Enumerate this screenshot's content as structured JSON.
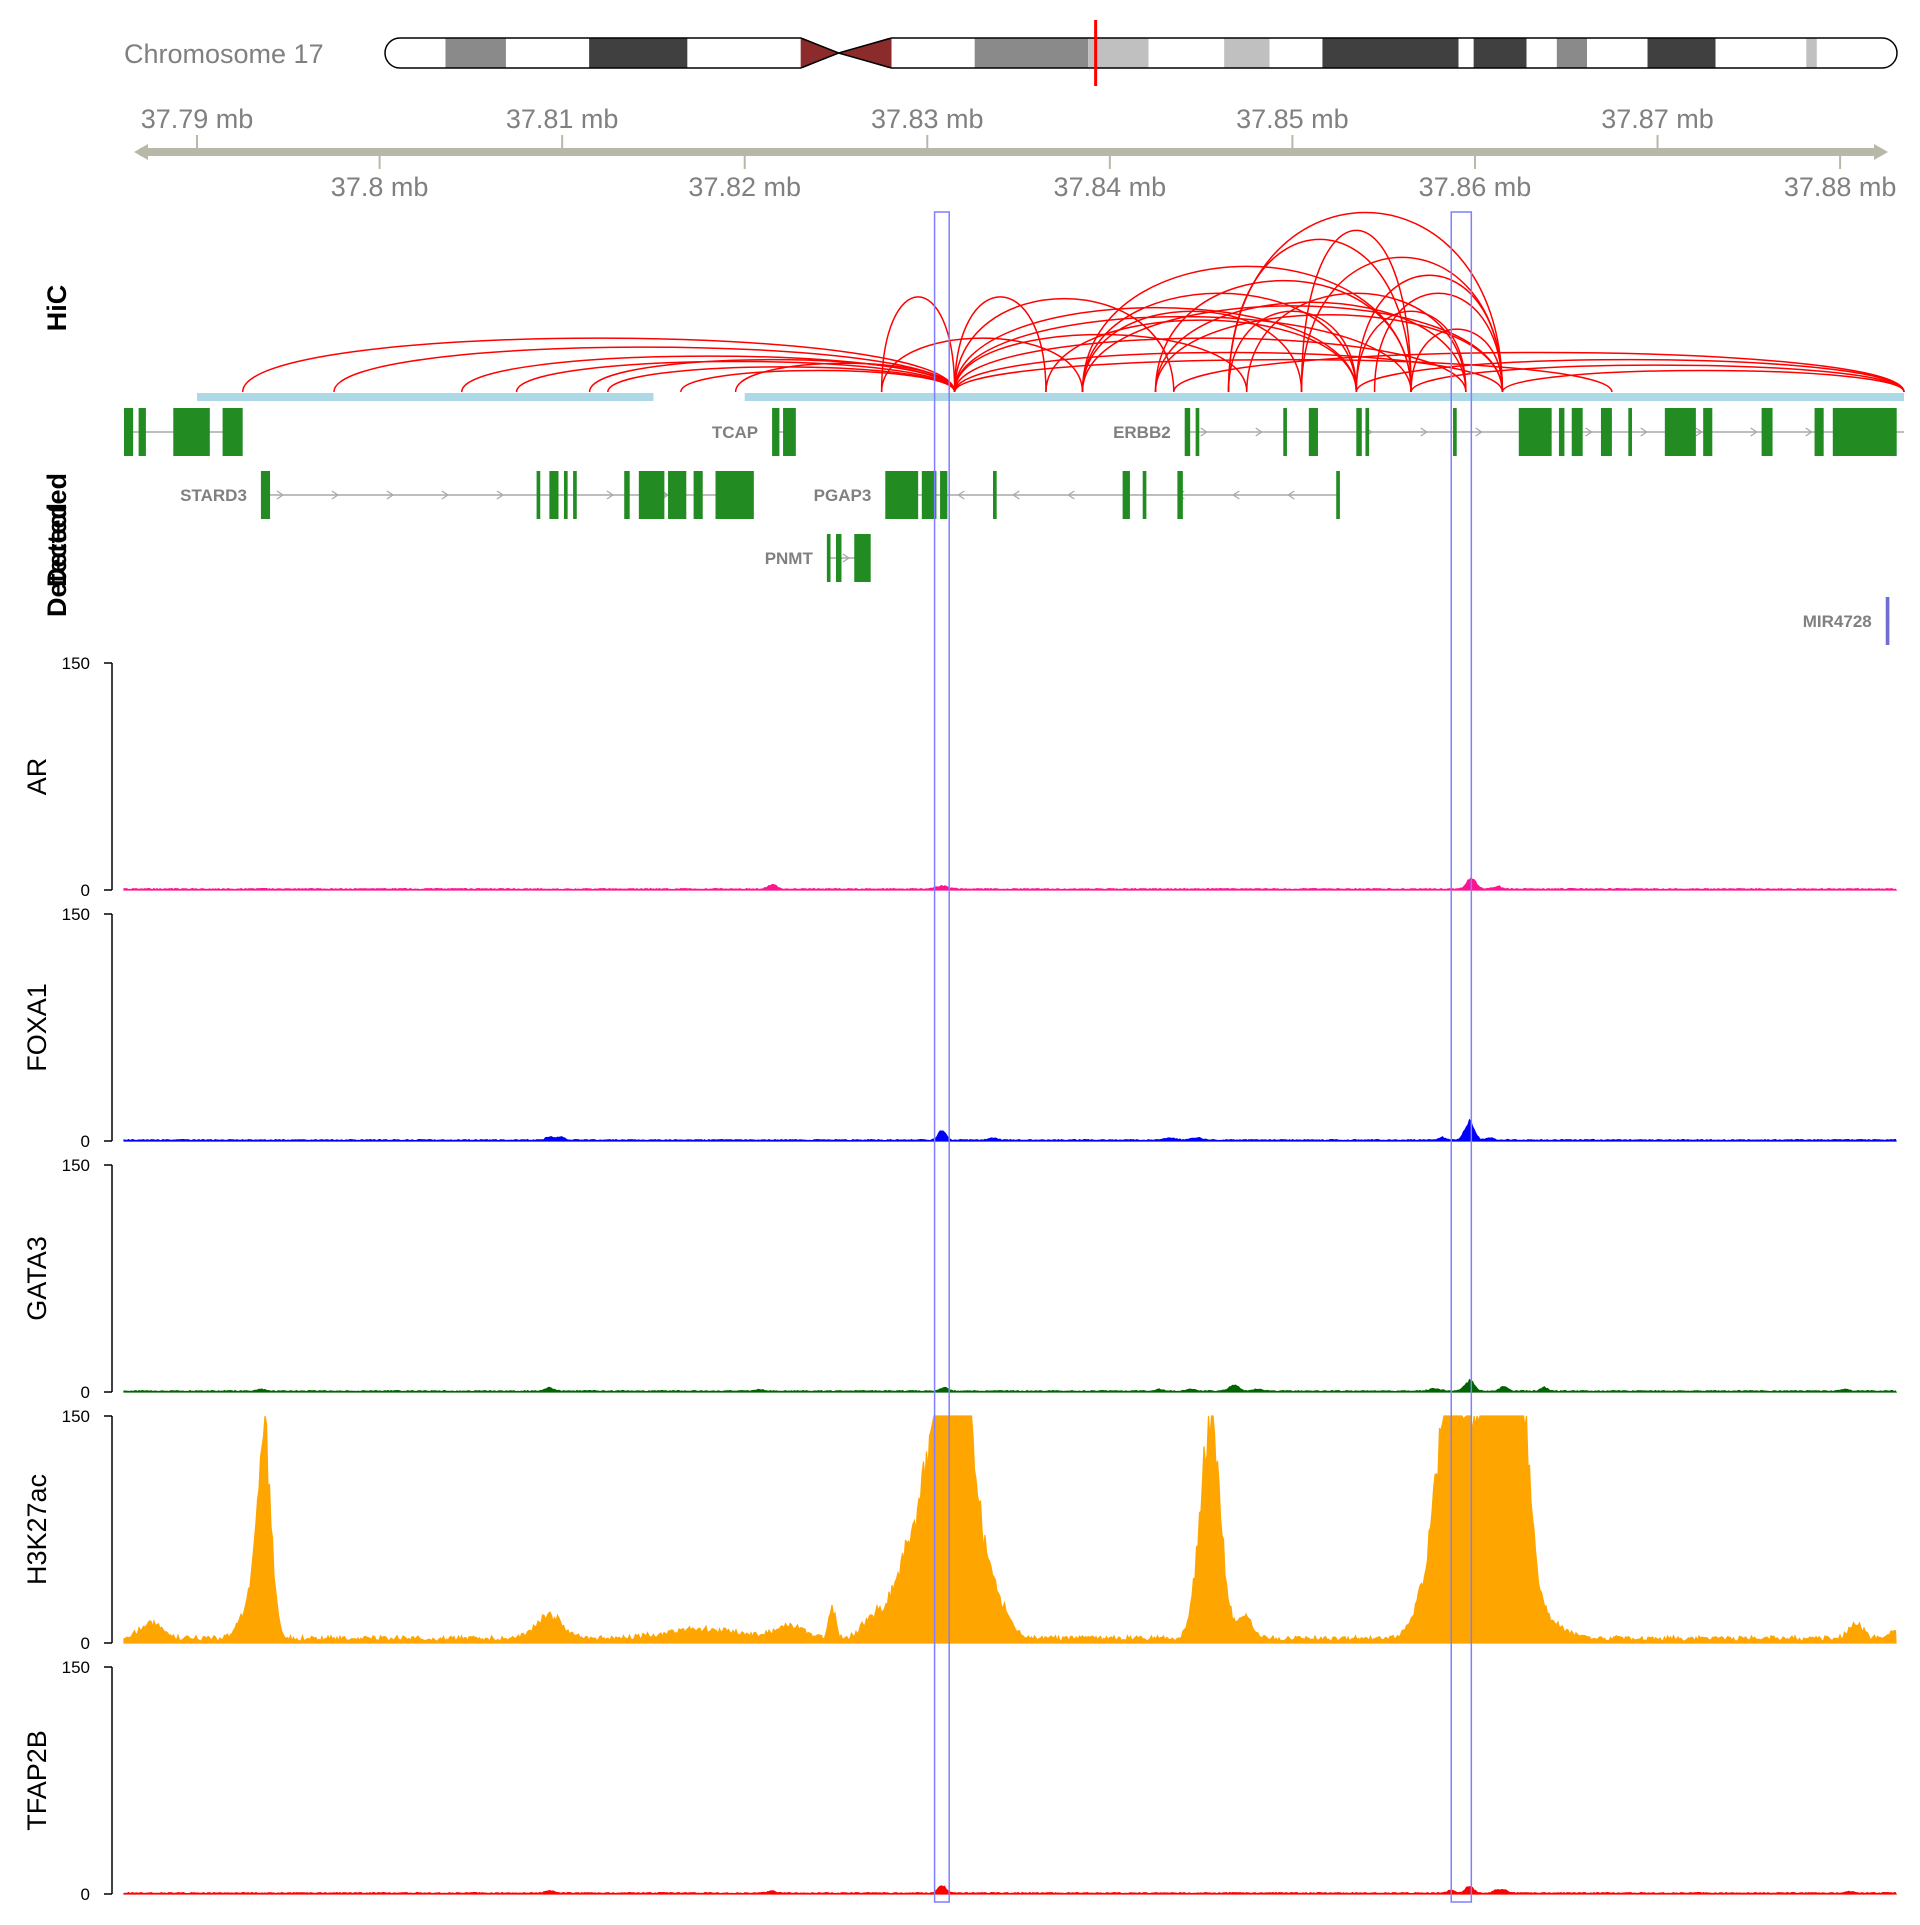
{
  "chart_data": {
    "type": "genome-browser",
    "chromosome_label": "Chromosome 17",
    "genomic_range_mb": [
      37.786,
      37.8835
    ],
    "top_axis_ticks": [
      "37.79 mb",
      "37.81 mb",
      "37.83 mb",
      "37.85 mb",
      "37.87 mb"
    ],
    "top_axis_values": [
      37.79,
      37.81,
      37.83,
      37.85,
      37.87
    ],
    "bottom_axis_ticks": [
      "37.8 mb",
      "37.82 mb",
      "37.84 mb",
      "37.86 mb",
      "37.88 mb"
    ],
    "bottom_axis_values": [
      37.8,
      37.82,
      37.84,
      37.86,
      37.88
    ],
    "ideogram": {
      "bands": [
        {
          "start": 0.0,
          "end": 0.04,
          "color": "#ffffff"
        },
        {
          "start": 0.04,
          "end": 0.08,
          "color": "#8a8a8a"
        },
        {
          "start": 0.08,
          "end": 0.135,
          "color": "#ffffff"
        },
        {
          "start": 0.135,
          "end": 0.2,
          "color": "#404040"
        },
        {
          "start": 0.2,
          "end": 0.275,
          "color": "#ffffff"
        },
        {
          "start": 0.275,
          "end": 0.32,
          "color": "#8b2b2b"
        },
        {
          "start": 0.32,
          "end": 0.335,
          "color": "#8b2b2b"
        },
        {
          "start": 0.335,
          "end": 0.39,
          "color": "#ffffff"
        },
        {
          "start": 0.39,
          "end": 0.465,
          "color": "#8a8a8a"
        },
        {
          "start": 0.465,
          "end": 0.505,
          "color": "#c0c0c0"
        },
        {
          "start": 0.505,
          "end": 0.555,
          "color": "#ffffff"
        },
        {
          "start": 0.555,
          "end": 0.585,
          "color": "#c0c0c0"
        },
        {
          "start": 0.585,
          "end": 0.62,
          "color": "#ffffff"
        },
        {
          "start": 0.62,
          "end": 0.71,
          "color": "#404040"
        },
        {
          "start": 0.71,
          "end": 0.72,
          "color": "#ffffff"
        },
        {
          "start": 0.72,
          "end": 0.755,
          "color": "#404040"
        },
        {
          "start": 0.755,
          "end": 0.775,
          "color": "#ffffff"
        },
        {
          "start": 0.775,
          "end": 0.795,
          "color": "#8a8a8a"
        },
        {
          "start": 0.795,
          "end": 0.835,
          "color": "#ffffff"
        },
        {
          "start": 0.835,
          "end": 0.88,
          "color": "#404040"
        },
        {
          "start": 0.88,
          "end": 0.94,
          "color": "#ffffff"
        },
        {
          "start": 0.94,
          "end": 0.947,
          "color": "#c0c0c0"
        },
        {
          "start": 0.947,
          "end": 1.0,
          "color": "#ffffff"
        }
      ],
      "centromere_fraction": 0.3,
      "highlight_fraction": 0.47,
      "highlight_color": "#ff0000"
    },
    "highlight_regions_mb": [
      [
        37.8304,
        37.8312
      ],
      [
        37.8587,
        37.8598
      ]
    ],
    "highlight_color": "#7f7fff",
    "hic": {
      "title": "HiC",
      "arc_color": "#ff0000",
      "anchor_color": "#add8e6",
      "anchors_mb": [
        [
          37.79,
          37.815
        ],
        [
          37.82,
          37.8835
        ]
      ],
      "arcs_mb": [
        [
          37.7925,
          37.8315,
          0.3
        ],
        [
          37.7975,
          37.8315,
          0.25
        ],
        [
          37.8045,
          37.8315,
          0.2
        ],
        [
          37.8075,
          37.8315,
          0.17
        ],
        [
          37.8115,
          37.8315,
          0.18
        ],
        [
          37.8125,
          37.8315,
          0.14
        ],
        [
          37.8165,
          37.8315,
          0.12
        ],
        [
          37.8195,
          37.8315,
          0.16
        ],
        [
          37.8275,
          37.8315,
          0.53
        ],
        [
          37.8275,
          37.8385,
          0.3
        ],
        [
          37.8315,
          37.8365,
          0.53
        ],
        [
          37.8315,
          37.8435,
          0.52
        ],
        [
          37.8315,
          37.8475,
          0.32
        ],
        [
          37.8315,
          37.8535,
          0.47
        ],
        [
          37.8315,
          37.8565,
          0.42
        ],
        [
          37.8315,
          37.8615,
          0.22
        ],
        [
          37.8315,
          37.8595,
          0.3
        ],
        [
          37.8385,
          37.8535,
          0.55
        ],
        [
          37.8385,
          37.8565,
          0.7
        ],
        [
          37.8385,
          37.8505,
          0.45
        ],
        [
          37.8425,
          37.8565,
          0.62
        ],
        [
          37.8425,
          37.8595,
          0.5
        ],
        [
          37.8425,
          37.8615,
          0.43
        ],
        [
          37.8465,
          37.8565,
          0.85
        ],
        [
          37.8465,
          37.8615,
          1.0
        ],
        [
          37.8465,
          37.8535,
          0.45
        ],
        [
          37.8505,
          37.8565,
          0.9
        ],
        [
          37.8505,
          37.8615,
          0.75
        ],
        [
          37.8535,
          37.8615,
          0.65
        ],
        [
          37.8535,
          37.8595,
          0.45
        ],
        [
          37.8565,
          37.8615,
          0.35
        ],
        [
          37.8315,
          37.8675,
          0.18
        ],
        [
          37.8435,
          37.8835,
          0.22
        ],
        [
          37.8535,
          37.8835,
          0.18
        ],
        [
          37.8565,
          37.8835,
          0.15
        ],
        [
          37.8615,
          37.8835,
          0.12
        ],
        [
          37.8475,
          37.8595,
          0.55
        ],
        [
          37.8365,
          37.8535,
          0.4
        ],
        [
          37.8385,
          37.8615,
          0.48
        ],
        [
          37.8545,
          37.8615,
          0.55
        ]
      ]
    },
    "genes": {
      "title": "Detected",
      "color": "#228b22",
      "intron_color": "#a9a9a9",
      "items": [
        {
          "name": "",
          "strand": "+",
          "row": 0,
          "start": 37.786,
          "end": 37.7925,
          "exons": [
            [
              37.786,
              37.7865
            ],
            [
              37.7868,
              37.7872
            ],
            [
              37.7887,
              37.7907
            ],
            [
              37.7914,
              37.7925
            ]
          ]
        },
        {
          "name": "TCAP",
          "strand": "+",
          "row": 0,
          "start": 37.8215,
          "end": 37.8228,
          "exons": [
            [
              37.8215,
              37.8219
            ],
            [
              37.8221,
              37.8228
            ]
          ]
        },
        {
          "name": "ERBB2",
          "strand": "+",
          "row": 0,
          "start": 37.8441,
          "end": 37.8835,
          "exons": [
            [
              37.8441,
              37.8444
            ],
            [
              37.8447,
              37.8449
            ],
            [
              37.8495,
              37.8497
            ],
            [
              37.8509,
              37.8514
            ],
            [
              37.8535,
              37.8538
            ],
            [
              37.854,
              37.8542
            ],
            [
              37.8588,
              37.859
            ],
            [
              37.8624,
              37.8642
            ],
            [
              37.8646,
              37.8649
            ],
            [
              37.8653,
              37.8659
            ],
            [
              37.8669,
              37.8675
            ],
            [
              37.8684,
              37.8686
            ],
            [
              37.8704,
              37.8721
            ],
            [
              37.8725,
              37.873
            ],
            [
              37.8757,
              37.8763
            ],
            [
              37.8786,
              37.8791
            ],
            [
              37.8796,
              37.8831
            ]
          ]
        },
        {
          "name": "STARD3",
          "strand": "+",
          "row": 1,
          "start": 37.7935,
          "end": 37.8205,
          "exons": [
            [
              37.7935,
              37.794
            ],
            [
              37.8086,
              37.8088
            ],
            [
              37.8093,
              37.8098
            ],
            [
              37.8101,
              37.8103
            ],
            [
              37.8106,
              37.8108
            ],
            [
              37.8134,
              37.8137
            ],
            [
              37.8142,
              37.8156
            ],
            [
              37.8158,
              37.8168
            ],
            [
              37.8172,
              37.8177
            ],
            [
              37.8184,
              37.8205
            ]
          ]
        },
        {
          "name": "PGAP3",
          "strand": "-",
          "row": 1,
          "start": 37.8277,
          "end": 37.8526,
          "exons": [
            [
              37.8277,
              37.8295
            ],
            [
              37.8297,
              37.8305
            ],
            [
              37.8307,
              37.8311
            ],
            [
              37.8336,
              37.8338
            ],
            [
              37.8407,
              37.8411
            ],
            [
              37.8418,
              37.842
            ],
            [
              37.8437,
              37.844
            ],
            [
              37.8524,
              37.8526
            ]
          ]
        },
        {
          "name": "PNMT",
          "strand": "+",
          "row": 2,
          "start": 37.8245,
          "end": 37.8269,
          "exons": [
            [
              37.8245,
              37.8247
            ],
            [
              37.825,
              37.8253
            ],
            [
              37.826,
              37.8269
            ]
          ]
        },
        {
          "name": "MIR4728",
          "strand": "+",
          "row": 3,
          "start": 37.8825,
          "end": 37.8827,
          "exons": [
            [
              37.8825,
              37.8827
            ]
          ],
          "color": "#6f6fd0"
        }
      ]
    },
    "signal_tracks": [
      {
        "name": "AR",
        "color": "#ff1493",
        "ylim": [
          0,
          150
        ],
        "baseline": 0.6,
        "peaks_mb": [
          [
            37.8215,
            3,
            0.00025
          ],
          [
            37.8308,
            2,
            0.0003
          ],
          [
            37.8598,
            7,
            0.00025
          ],
          [
            37.8612,
            2,
            0.0002
          ]
        ]
      },
      {
        "name": "FOXA1",
        "color": "#0000ff",
        "ylim": [
          0,
          150
        ],
        "baseline": 0.6,
        "peaks_mb": [
          [
            37.8093,
            2,
            0.0002
          ],
          [
            37.8099,
            2,
            0.0002
          ],
          [
            37.8308,
            7,
            0.0002
          ],
          [
            37.8336,
            1.5,
            0.0002
          ],
          [
            37.8433,
            1.5,
            0.0003
          ],
          [
            37.8448,
            1.5,
            0.0003
          ],
          [
            37.8582,
            2,
            0.0002
          ],
          [
            37.8597,
            13,
            0.00025
          ],
          [
            37.8608,
            1.5,
            0.0002
          ]
        ]
      },
      {
        "name": "GATA3",
        "color": "#006400",
        "ylim": [
          0,
          150
        ],
        "baseline": 0.6,
        "peaks_mb": [
          [
            37.7935,
            1.2,
            0.0002
          ],
          [
            37.8093,
            2.5,
            0.0002
          ],
          [
            37.8208,
            1.2,
            0.0002
          ],
          [
            37.8309,
            2.5,
            0.0002
          ],
          [
            37.8427,
            1.2,
            0.0002
          ],
          [
            37.8444,
            1.5,
            0.0002
          ],
          [
            37.8468,
            4,
            0.00025
          ],
          [
            37.8481,
            1.5,
            0.0002
          ],
          [
            37.8578,
            1.5,
            0.0003
          ],
          [
            37.8597,
            7,
            0.00025
          ],
          [
            37.8616,
            3,
            0.0002
          ],
          [
            37.8638,
            2.5,
            0.0002
          ],
          [
            37.8803,
            1.2,
            0.0002
          ]
        ]
      },
      {
        "name": "H3K27ac",
        "color": "#ffa500",
        "ylim": [
          0,
          150
        ],
        "baseline": 3,
        "peaks_mb": [
          [
            37.7937,
            125,
            0.00035
          ],
          [
            37.7931,
            30,
            0.0006
          ],
          [
            37.7875,
            10,
            0.0006
          ],
          [
            37.8093,
            16,
            0.0007
          ],
          [
            37.8177,
            6,
            0.002
          ],
          [
            37.8225,
            8,
            0.0008
          ],
          [
            37.8248,
            20,
            0.00018
          ],
          [
            37.8285,
            35,
            0.0009
          ],
          [
            37.8307,
            150,
            0.0009
          ],
          [
            37.8318,
            150,
            0.0008
          ],
          [
            37.8335,
            30,
            0.0008
          ],
          [
            37.8291,
            15,
            0.0004
          ],
          [
            37.8268,
            8,
            0.0005
          ],
          [
            37.8455,
            150,
            0.00055
          ],
          [
            37.8474,
            15,
            0.0004
          ],
          [
            37.8579,
            60,
            0.0008
          ],
          [
            37.8585,
            110,
            0.0005
          ],
          [
            37.8596,
            120,
            0.0006
          ],
          [
            37.8607,
            108,
            0.0006
          ],
          [
            37.8614,
            150,
            0.0005
          ],
          [
            37.8624,
            140,
            0.0005
          ],
          [
            37.8621,
            60,
            0.001
          ],
          [
            37.8642,
            6,
            0.001
          ],
          [
            37.8809,
            10,
            0.0004
          ],
          [
            37.8832,
            7,
            0.0004
          ]
        ]
      },
      {
        "name": "TFAP2B",
        "color": "#ff0000",
        "ylim": [
          0,
          150
        ],
        "baseline": 0.6,
        "peaks_mb": [
          [
            37.8093,
            2,
            0.0002
          ],
          [
            37.8215,
            1.5,
            0.0002
          ],
          [
            37.8308,
            5,
            0.0002
          ],
          [
            37.8587,
            2,
            0.0002
          ],
          [
            37.8597,
            5,
            0.0002
          ],
          [
            37.8612,
            2,
            0.0002
          ],
          [
            37.8616,
            2,
            0.0002
          ],
          [
            37.8805,
            1,
            0.0002
          ]
        ]
      }
    ],
    "y_tick_labels": [
      "150",
      "0"
    ]
  }
}
